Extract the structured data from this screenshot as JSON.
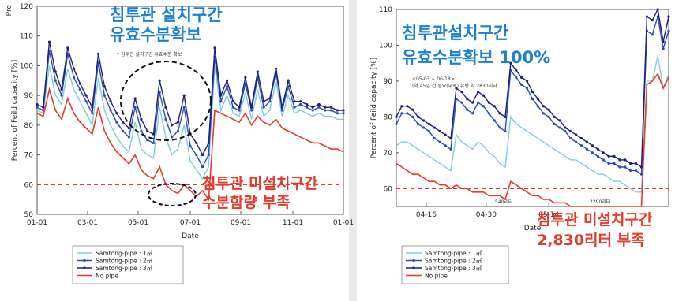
{
  "chart_data": [
    {
      "type": "line",
      "xlabel": "Date",
      "ylabel": "Percent of Feild capacity [%]",
      "corner_label": "Pre",
      "x_ticks": [
        "01-01",
        "03-01",
        "05-01",
        "07-01",
        "09-01",
        "11-01",
        "01-01"
      ],
      "ylim": [
        50,
        120
      ],
      "y_ticks": [
        "50",
        "60",
        "70",
        "80",
        "90",
        "100",
        "110",
        "120"
      ],
      "reference_line": 60,
      "annotations": {
        "blue": [
          "침투관 설치구간",
          "유효수분확보"
        ],
        "red": [
          "침투관 미설치구간",
          "수분함량 부족"
        ],
        "small": "* 침투관 설치구간 유효수분 확보"
      },
      "series": [
        {
          "name": "Samtong-pipe : 1㎥",
          "color": "#7ecbe6",
          "x": [
            0,
            2,
            4,
            6,
            8,
            10,
            12,
            14,
            16,
            18,
            20,
            22,
            24,
            26,
            28,
            30,
            32,
            34,
            36,
            38,
            40,
            42,
            44,
            46,
            48,
            50,
            52,
            54,
            56,
            58,
            60,
            62,
            64,
            66,
            68,
            70,
            72,
            74,
            76,
            78,
            80,
            82,
            84,
            86,
            88,
            90,
            92,
            94,
            96,
            98,
            100
          ],
          "y": [
            85,
            84,
            100,
            90,
            87,
            99,
            92,
            88,
            84,
            80,
            96,
            85,
            80,
            76,
            73,
            71,
            81,
            72,
            70,
            69,
            86,
            76,
            70,
            72,
            80,
            68,
            65,
            62,
            66,
            100,
            85,
            90,
            84,
            83,
            91,
            82,
            92,
            83,
            85,
            95,
            83,
            90,
            84,
            85,
            84,
            83,
            84,
            83,
            83,
            82,
            82
          ]
        },
        {
          "name": "Samtong-pipe : 2㎥",
          "color": "#2a4db5",
          "x": [
            0,
            2,
            4,
            6,
            8,
            10,
            12,
            14,
            16,
            18,
            20,
            22,
            24,
            26,
            28,
            30,
            32,
            34,
            36,
            38,
            40,
            42,
            44,
            46,
            48,
            50,
            52,
            54,
            56,
            58,
            60,
            62,
            64,
            66,
            68,
            70,
            72,
            74,
            76,
            78,
            80,
            82,
            84,
            86,
            88,
            90,
            92,
            94,
            96,
            98,
            100
          ],
          "y": [
            86,
            85,
            105,
            95,
            90,
            104,
            96,
            92,
            88,
            84,
            101,
            90,
            85,
            81,
            78,
            76,
            86,
            78,
            75,
            74,
            91,
            82,
            76,
            78,
            86,
            73,
            70,
            66,
            70,
            103,
            88,
            93,
            86,
            85,
            94,
            85,
            96,
            86,
            88,
            98,
            85,
            93,
            86,
            87,
            86,
            85,
            86,
            85,
            85,
            84,
            84
          ]
        },
        {
          "name": "Samtong-pipe : 3㎥",
          "color": "#1c1f78",
          "x": [
            0,
            2,
            4,
            6,
            8,
            10,
            12,
            14,
            16,
            18,
            20,
            22,
            24,
            26,
            28,
            30,
            32,
            34,
            36,
            38,
            40,
            42,
            44,
            46,
            48,
            50,
            52,
            54,
            56,
            58,
            60,
            62,
            64,
            66,
            68,
            70,
            72,
            74,
            76,
            78,
            80,
            82,
            84,
            86,
            88,
            90,
            92,
            94,
            96,
            98,
            100
          ],
          "y": [
            87,
            86,
            108,
            98,
            92,
            106,
            99,
            94,
            90,
            86,
            104,
            93,
            88,
            84,
            81,
            79,
            89,
            82,
            78,
            77,
            95,
            86,
            80,
            81,
            90,
            77,
            74,
            70,
            74,
            106,
            90,
            95,
            88,
            86,
            96,
            86,
            98,
            88,
            89,
            99,
            86,
            95,
            88,
            88,
            87,
            86,
            87,
            86,
            86,
            85,
            85
          ]
        },
        {
          "name": "No pipe",
          "color": "#e8392b",
          "x": [
            0,
            2,
            4,
            6,
            8,
            10,
            12,
            14,
            16,
            18,
            20,
            22,
            24,
            26,
            28,
            30,
            32,
            34,
            36,
            38,
            40,
            42,
            44,
            46,
            48,
            50,
            52,
            54,
            56,
            58,
            60,
            62,
            64,
            66,
            68,
            70,
            72,
            74,
            76,
            78,
            80,
            82,
            84,
            86,
            88,
            90,
            92,
            94,
            96,
            98,
            100
          ],
          "y": [
            84,
            83,
            92,
            85,
            82,
            89,
            84,
            81,
            79,
            77,
            86,
            78,
            74,
            71,
            69,
            67,
            70,
            65,
            63,
            62,
            66,
            60,
            58,
            57,
            60,
            58,
            56,
            58,
            55,
            85,
            84,
            83,
            82,
            81,
            84,
            80,
            83,
            81,
            80,
            82,
            79,
            78,
            77,
            76,
            75,
            74,
            74,
            73,
            72,
            72,
            71
          ]
        }
      ]
    },
    {
      "type": "line",
      "xlabel": "Date",
      "ylabel": "Percent of Feild capacity [%]",
      "x_ticks": [
        "04-16",
        "04-30",
        "05-14"
      ],
      "ylim": [
        55,
        110
      ],
      "y_ticks": [
        "60",
        "70",
        "80",
        "90",
        "100",
        "110"
      ],
      "reference_line": 60,
      "annotations": {
        "blue": [
          "침투관설치구간",
          "유효수분확보 100%"
        ],
        "red": [
          "침투관 미설치구간",
          "2,830리터 부족"
        ],
        "small": [
          "<05-03 ~ 06-18>",
          "(약 45일 간 필요(부족) 유량 약 2830리터"
        ],
        "point_labels": [
          "540리터",
          "2290리터"
        ]
      },
      "series": [
        {
          "name": "Samtong-pipe : 1㎥",
          "color": "#7ecbe6",
          "x": [
            0,
            2,
            4,
            6,
            8,
            10,
            12,
            14,
            16,
            18,
            20,
            22,
            24,
            26,
            28,
            30,
            32,
            34,
            36,
            38,
            40,
            42,
            44,
            46,
            48,
            50,
            52,
            54,
            56,
            58,
            60,
            62,
            64,
            66,
            68,
            70,
            72,
            74,
            76,
            78,
            80,
            82,
            84,
            86,
            88,
            90,
            92,
            94,
            96,
            98,
            100
          ],
          "y": [
            72,
            73,
            73,
            72,
            71,
            70,
            69,
            68,
            67,
            66,
            65,
            75,
            73,
            72,
            71,
            73,
            72,
            70,
            69,
            67,
            66,
            80,
            78,
            77,
            76,
            75,
            74,
            73,
            72,
            71,
            70,
            69,
            68,
            68,
            67,
            66,
            65,
            64,
            64,
            63,
            62,
            62,
            61,
            60,
            59,
            59,
            90,
            90,
            97,
            88,
            92
          ]
        },
        {
          "name": "Samtong-pipe : 2㎥",
          "color": "#2a4db5",
          "x": [
            0,
            2,
            4,
            6,
            8,
            10,
            12,
            14,
            16,
            18,
            20,
            22,
            24,
            26,
            28,
            30,
            32,
            34,
            36,
            38,
            40,
            42,
            44,
            46,
            48,
            50,
            52,
            54,
            56,
            58,
            60,
            62,
            64,
            66,
            68,
            70,
            72,
            74,
            76,
            78,
            80,
            82,
            84,
            86,
            88,
            90,
            92,
            94,
            96,
            98,
            100
          ],
          "y": [
            78,
            81,
            81,
            80,
            78,
            77,
            76,
            74,
            73,
            72,
            71,
            85,
            84,
            82,
            81,
            84,
            83,
            81,
            79,
            77,
            76,
            93,
            91,
            89,
            88,
            85,
            83,
            81,
            80,
            78,
            77,
            76,
            74,
            73,
            72,
            71,
            70,
            69,
            68,
            67,
            67,
            66,
            66,
            65,
            65,
            64,
            104,
            103,
            108,
            99,
            104
          ]
        },
        {
          "name": "Samtong-pipe : 3㎥",
          "color": "#1c1f78",
          "x": [
            0,
            2,
            4,
            6,
            8,
            10,
            12,
            14,
            16,
            18,
            20,
            22,
            24,
            26,
            28,
            30,
            32,
            34,
            36,
            38,
            40,
            42,
            44,
            46,
            48,
            50,
            52,
            54,
            56,
            58,
            60,
            62,
            64,
            66,
            68,
            70,
            72,
            74,
            76,
            78,
            80,
            82,
            84,
            86,
            88,
            90,
            92,
            94,
            96,
            98,
            100
          ],
          "y": [
            80,
            83,
            83,
            82,
            80,
            79,
            78,
            77,
            76,
            75,
            74,
            88,
            87,
            85,
            84,
            87,
            86,
            84,
            83,
            81,
            80,
            95,
            93,
            91,
            90,
            87,
            85,
            83,
            82,
            80,
            79,
            77,
            76,
            75,
            74,
            73,
            72,
            71,
            70,
            69,
            69,
            68,
            68,
            67,
            67,
            66,
            108,
            107,
            110,
            101,
            108
          ]
        },
        {
          "name": "No pipe",
          "color": "#e8392b",
          "x": [
            0,
            2,
            4,
            6,
            8,
            10,
            12,
            14,
            16,
            18,
            20,
            22,
            24,
            26,
            28,
            30,
            32,
            34,
            36,
            38,
            40,
            42,
            44,
            46,
            48,
            50,
            52,
            54,
            56,
            58,
            60,
            62,
            64,
            66,
            68,
            70,
            72,
            74,
            76,
            78,
            80,
            82,
            84,
            86,
            88,
            90,
            92,
            94,
            96,
            98,
            100
          ],
          "y": [
            67,
            66,
            65,
            64,
            64,
            63,
            62,
            62,
            61,
            61,
            60,
            61,
            60,
            60,
            59,
            59,
            59,
            58,
            58,
            58,
            57,
            62,
            61,
            60,
            59,
            58,
            58,
            57,
            57,
            56,
            56,
            56,
            55,
            55,
            55,
            55,
            55,
            55,
            55,
            55,
            55,
            55,
            55,
            55,
            55,
            55,
            89,
            90,
            92,
            88,
            91
          ]
        }
      ]
    }
  ]
}
